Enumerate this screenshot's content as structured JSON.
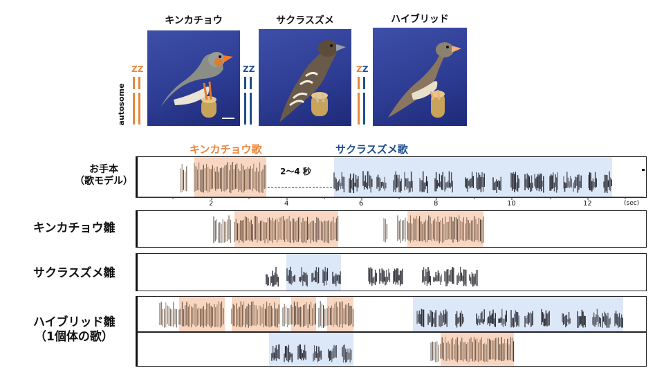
{
  "birds": [
    {
      "name": "キンカチョウ",
      "chromosome": "ZZ"
    },
    {
      "name": "サクラスズメ",
      "chromosome": "ZZ"
    },
    {
      "name": "ハイブリッド",
      "chromosome_z1": "Z",
      "chromosome_z2": "Z"
    }
  ],
  "autosome_label": "autosome",
  "song_legend": {
    "zebra": "キンカチョウ歌",
    "bengalese": "サクラスズメ歌"
  },
  "colors": {
    "zebra": "#e8863a",
    "bengalese": "#1f4e8c",
    "zebra_highlight": "#f8d6c1",
    "bengalese_highlight": "#dce8f8"
  },
  "rows": {
    "model": {
      "line1": "お手本",
      "line2": "（歌モデル）"
    },
    "zebra_chick": "キンカチョウ雛",
    "bengalese_chick": "サクラスズメ雛",
    "hybrid_chick": {
      "line1": "ハイブリッド雛",
      "line2": "（1個体の歌）"
    }
  },
  "gap_label": "2～4 秒",
  "time_axis": {
    "unit": "(sec)",
    "ticks": [
      "2",
      "4",
      "6",
      "8",
      "10",
      "12"
    ]
  }
}
